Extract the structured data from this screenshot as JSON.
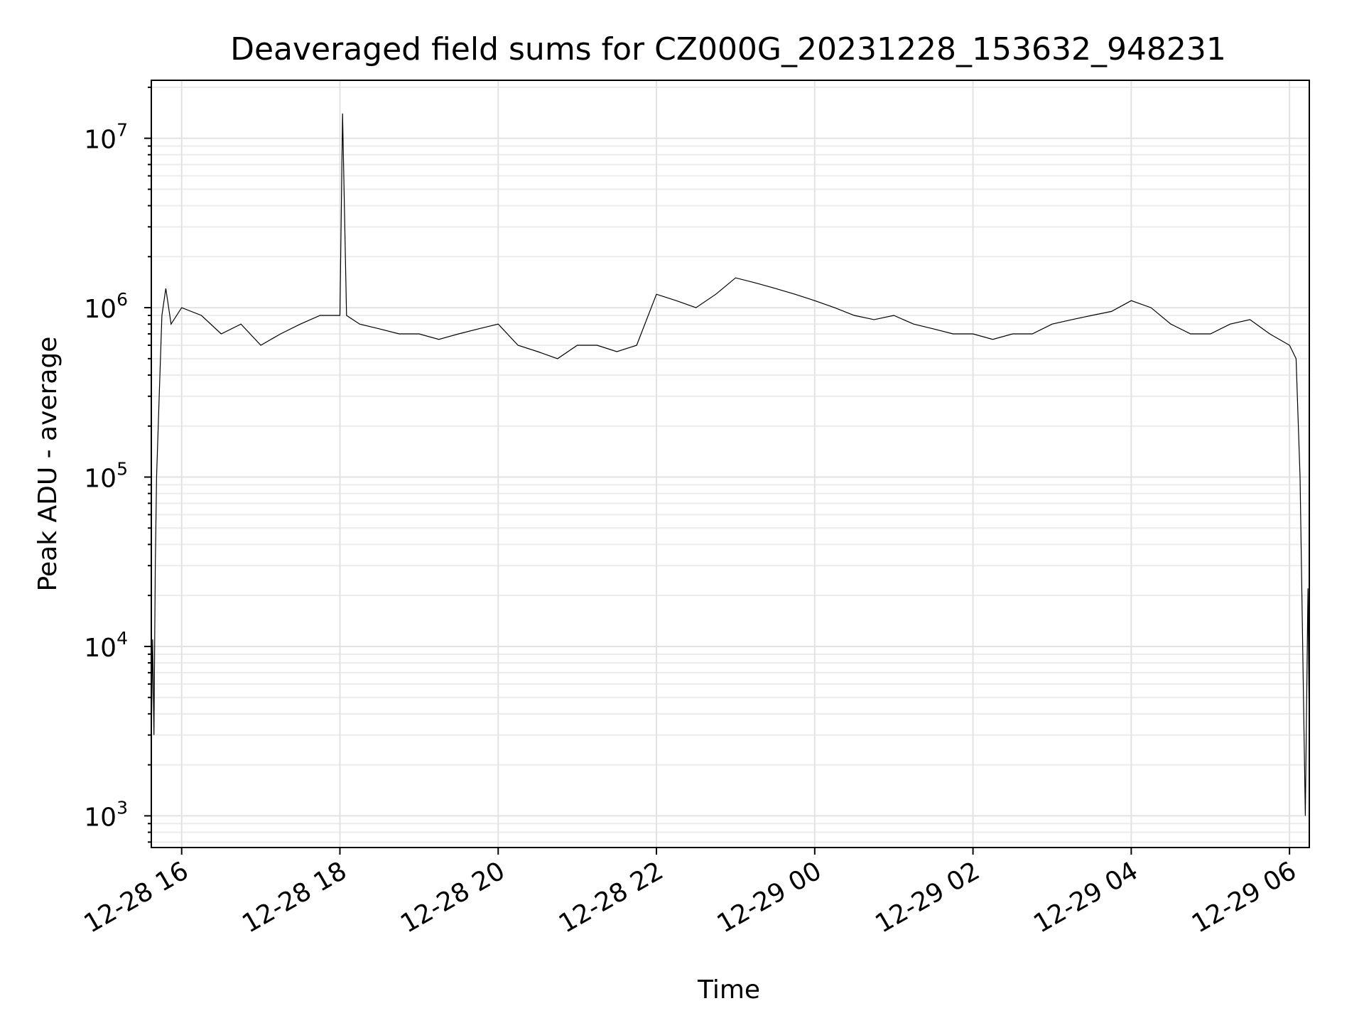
{
  "chart_data": {
    "type": "line",
    "title": "Deaveraged field sums for CZ000G_20231228_153632_948231",
    "xlabel": "Time",
    "ylabel": "Peak ADU - average",
    "x_range": [
      "2023-12-28 15:37",
      "2023-12-29 06:15"
    ],
    "x_ticks": [
      {
        "value": "2023-12-28 16:00",
        "label": "12-28 16"
      },
      {
        "value": "2023-12-28 18:00",
        "label": "12-28 18"
      },
      {
        "value": "2023-12-28 20:00",
        "label": "12-28 20"
      },
      {
        "value": "2023-12-28 22:00",
        "label": "12-28 22"
      },
      {
        "value": "2023-12-29 00:00",
        "label": "12-29 00"
      },
      {
        "value": "2023-12-29 02:00",
        "label": "12-29 02"
      },
      {
        "value": "2023-12-29 04:00",
        "label": "12-29 04"
      },
      {
        "value": "2023-12-29 06:00",
        "label": "12-29 06"
      }
    ],
    "y_scale": "log",
    "ylim": [
      650,
      22000000
    ],
    "y_ticks": [
      {
        "value": 1000,
        "base": "10",
        "exp": "3"
      },
      {
        "value": 10000,
        "base": "10",
        "exp": "4"
      },
      {
        "value": 100000,
        "base": "10",
        "exp": "5"
      },
      {
        "value": 1000000,
        "base": "10",
        "exp": "6"
      },
      {
        "value": 10000000,
        "base": "10",
        "exp": "7"
      }
    ],
    "grid": true,
    "legend": "none",
    "line_color": "#000000",
    "series": [
      {
        "x": [
          "2023-12-28 15:37",
          "2023-12-28 15:38",
          "2023-12-28 15:39",
          "2023-12-28 15:40",
          "2023-12-28 15:41",
          "2023-12-28 15:43",
          "2023-12-28 15:45",
          "2023-12-28 15:48",
          "2023-12-28 15:52",
          "2023-12-28 16:00",
          "2023-12-28 16:15",
          "2023-12-28 16:30",
          "2023-12-28 16:45",
          "2023-12-28 17:00",
          "2023-12-28 17:15",
          "2023-12-28 17:30",
          "2023-12-28 17:45",
          "2023-12-28 18:00",
          "2023-12-28 18:02",
          "2023-12-28 18:05",
          "2023-12-28 18:15",
          "2023-12-28 18:30",
          "2023-12-28 18:45",
          "2023-12-28 19:00",
          "2023-12-28 19:15",
          "2023-12-28 19:30",
          "2023-12-28 19:45",
          "2023-12-28 20:00",
          "2023-12-28 20:15",
          "2023-12-28 20:30",
          "2023-12-28 20:45",
          "2023-12-28 21:00",
          "2023-12-28 21:15",
          "2023-12-28 21:30",
          "2023-12-28 21:45",
          "2023-12-28 22:00",
          "2023-12-28 22:15",
          "2023-12-28 22:30",
          "2023-12-28 22:45",
          "2023-12-28 23:00",
          "2023-12-28 23:15",
          "2023-12-28 23:30",
          "2023-12-28 23:45",
          "2023-12-29 00:00",
          "2023-12-29 00:15",
          "2023-12-29 00:30",
          "2023-12-29 00:45",
          "2023-12-29 01:00",
          "2023-12-29 01:15",
          "2023-12-29 01:30",
          "2023-12-29 01:45",
          "2023-12-29 02:00",
          "2023-12-29 02:15",
          "2023-12-29 02:30",
          "2023-12-29 02:45",
          "2023-12-29 03:00",
          "2023-12-29 03:15",
          "2023-12-29 03:30",
          "2023-12-29 03:45",
          "2023-12-29 04:00",
          "2023-12-29 04:15",
          "2023-12-29 04:30",
          "2023-12-29 04:45",
          "2023-12-29 05:00",
          "2023-12-29 05:15",
          "2023-12-29 05:30",
          "2023-12-29 05:45",
          "2023-12-29 06:00",
          "2023-12-29 06:05",
          "2023-12-29 06:08",
          "2023-12-29 06:10",
          "2023-12-29 06:12",
          "2023-12-29 06:14",
          "2023-12-29 06:15"
        ],
        "y": [
          3000,
          11000,
          3000,
          30000,
          100000,
          300000,
          900000,
          1300000,
          800000,
          1000000,
          900000,
          700000,
          800000,
          600000,
          700000,
          800000,
          900000,
          900000,
          14000000,
          900000,
          800000,
          750000,
          700000,
          700000,
          650000,
          700000,
          750000,
          800000,
          600000,
          550000,
          500000,
          600000,
          600000,
          550000,
          600000,
          1200000,
          1100000,
          1000000,
          1200000,
          1500000,
          1400000,
          1300000,
          1200000,
          1100000,
          1000000,
          900000,
          850000,
          900000,
          800000,
          750000,
          700000,
          700000,
          650000,
          700000,
          700000,
          800000,
          850000,
          900000,
          950000,
          1100000,
          1000000,
          800000,
          700000,
          700000,
          800000,
          850000,
          700000,
          600000,
          500000,
          100000,
          10000,
          1000,
          22000,
          3000
        ],
        "values_note": ""
      }
    ]
  }
}
